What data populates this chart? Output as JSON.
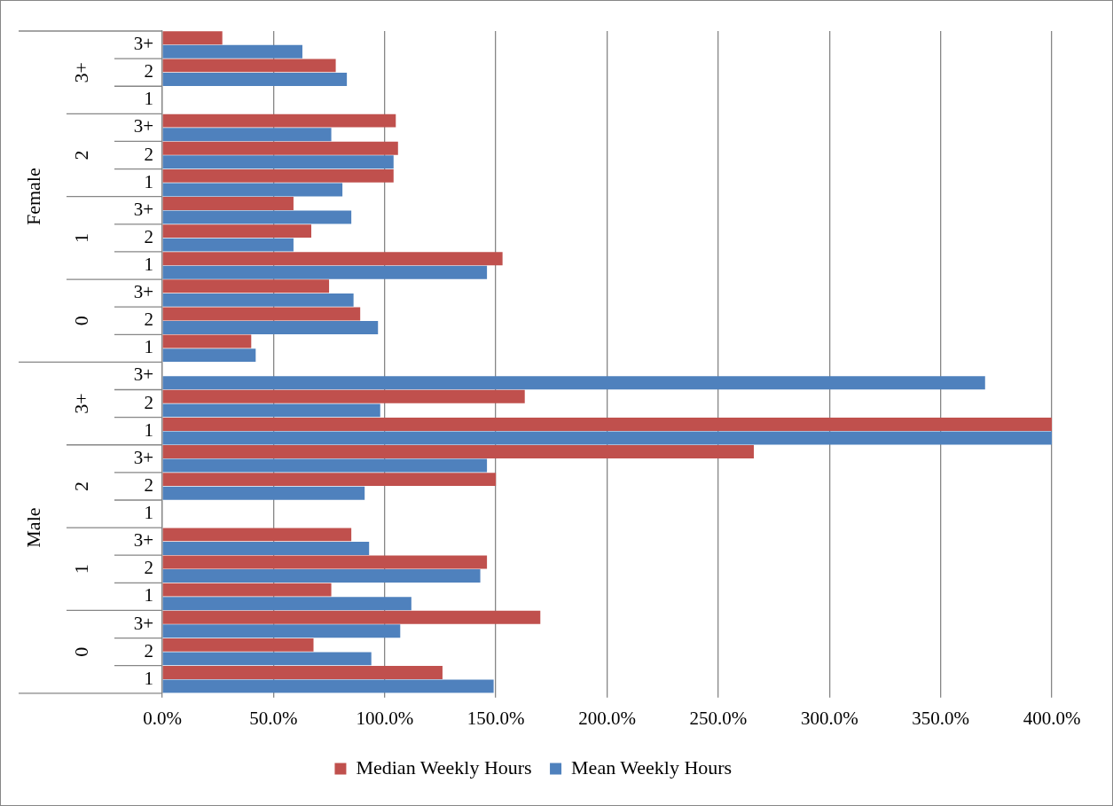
{
  "chart_data": {
    "type": "bar",
    "orientation": "horizontal",
    "categories": [
      "3+",
      "2",
      "1",
      "3+",
      "2",
      "1",
      "3+",
      "2",
      "1",
      "3+",
      "2",
      "1",
      "3+",
      "2",
      "1",
      "3+",
      "2",
      "1",
      "3+",
      "2",
      "1",
      "3+",
      "2",
      "1"
    ],
    "series": [
      {
        "name": "Median Weekly Hours",
        "color": "#c0504d",
        "values": [
          27,
          78,
          null,
          105,
          106,
          104,
          59,
          67,
          153,
          75,
          89,
          40,
          null,
          163,
          400,
          266,
          150,
          null,
          85,
          146,
          76,
          170,
          68,
          126
        ]
      },
      {
        "name": "Mean Weekly Hours",
        "color": "#4f81bd",
        "values": [
          63,
          83,
          null,
          76,
          104,
          81,
          85,
          59,
          146,
          86,
          97,
          42,
          370,
          98,
          400,
          146,
          91,
          null,
          93,
          143,
          112,
          107,
          94,
          149
        ]
      }
    ],
    "annotations": [
      "3+",
      "2",
      "1",
      "0",
      "3+",
      "2",
      "1",
      "0",
      "Female",
      "Male"
    ],
    "xlim": [
      0,
      400
    ],
    "xticks": [
      {
        "value": 0,
        "label": "0.0%"
      },
      {
        "value": 50,
        "label": "50.0%"
      },
      {
        "value": 100,
        "label": "100.0%"
      },
      {
        "value": 150,
        "label": "150.0%"
      },
      {
        "value": 200,
        "label": "200.0%"
      },
      {
        "value": 250,
        "label": "250.0%"
      },
      {
        "value": 300,
        "label": "300.0%"
      },
      {
        "value": 350,
        "label": "350.0%"
      },
      {
        "value": 400,
        "label": "400.0%"
      }
    ],
    "grid": "x",
    "legend": "bottom"
  }
}
